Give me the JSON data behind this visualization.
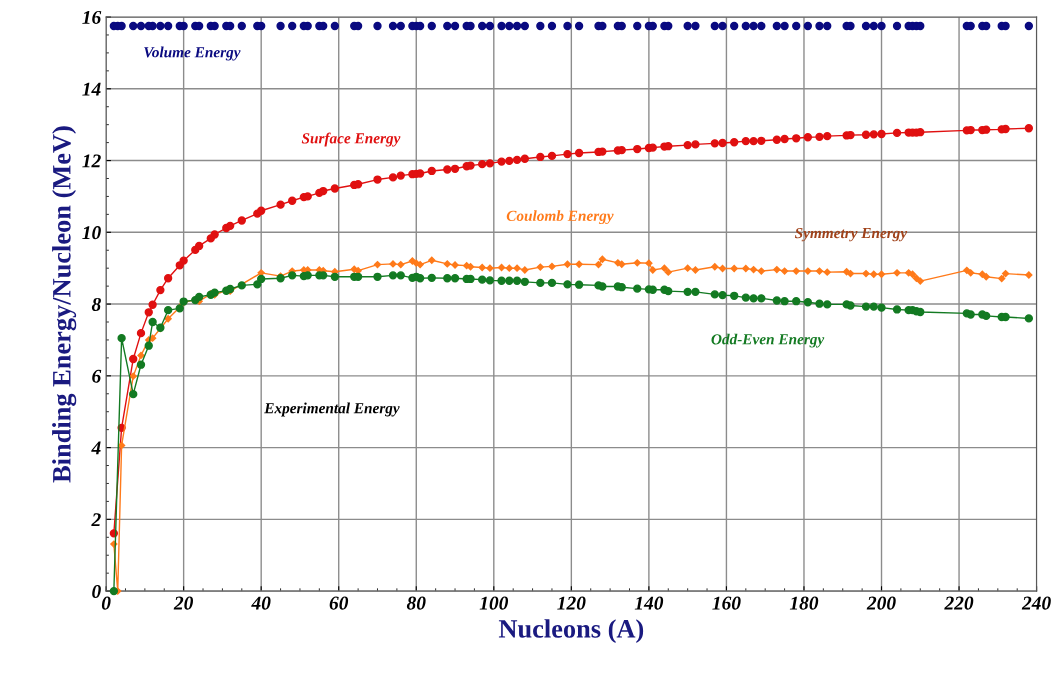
{
  "chart_data": {
    "type": "line",
    "xlabel": "Nucleons (A)",
    "ylabel": "Binding Energy/Nucleon (MeV)",
    "xlim": [
      0,
      240
    ],
    "ylim": [
      0,
      16
    ],
    "xticks": [
      0,
      20,
      40,
      60,
      80,
      100,
      120,
      140,
      160,
      180,
      200,
      220,
      240
    ],
    "yticks": [
      0,
      2,
      4,
      6,
      8,
      10,
      12,
      14,
      16
    ],
    "grid": true,
    "legend": false,
    "annotations": [
      "Symmetry Energy",
      "Experimental Energy"
    ],
    "x": [
      2,
      3,
      4,
      7,
      9,
      11,
      12,
      14,
      16,
      19,
      20,
      23,
      24,
      27,
      28,
      31,
      32,
      35,
      39,
      40,
      45,
      48,
      51,
      52,
      55,
      56,
      59,
      64,
      65,
      70,
      74,
      76,
      79,
      80,
      81,
      84,
      88,
      90,
      93,
      94,
      97,
      99,
      102,
      104,
      106,
      108,
      112,
      115,
      119,
      122,
      127,
      128,
      132,
      133,
      137,
      140,
      141,
      144,
      145,
      150,
      152,
      157,
      159,
      162,
      165,
      167,
      169,
      173,
      175,
      178,
      181,
      184,
      186,
      191,
      192,
      196,
      198,
      200,
      204,
      207,
      208,
      209,
      210,
      222,
      223,
      226,
      227,
      231,
      232,
      238
    ],
    "series": [
      {
        "name": "Volume Energy",
        "type": "scatter",
        "marker": "circle",
        "color": "#0a0a80",
        "values": [
          15.75,
          15.75,
          15.75,
          15.75,
          15.75,
          15.75,
          15.75,
          15.75,
          15.75,
          15.75,
          15.75,
          15.75,
          15.75,
          15.75,
          15.75,
          15.75,
          15.75,
          15.75,
          15.75,
          15.75,
          15.75,
          15.75,
          15.75,
          15.75,
          15.75,
          15.75,
          15.75,
          15.75,
          15.75,
          15.75,
          15.75,
          15.75,
          15.75,
          15.75,
          15.75,
          15.75,
          15.75,
          15.75,
          15.75,
          15.75,
          15.75,
          15.75,
          15.75,
          15.75,
          15.75,
          15.75,
          15.75,
          15.75,
          15.75,
          15.75,
          15.75,
          15.75,
          15.75,
          15.75,
          15.75,
          15.75,
          15.75,
          15.75,
          15.75,
          15.75,
          15.75,
          15.75,
          15.75,
          15.75,
          15.75,
          15.75,
          15.75,
          15.75,
          15.75,
          15.75,
          15.75,
          15.75,
          15.75,
          15.75,
          15.75,
          15.75,
          15.75,
          15.75,
          15.75,
          15.75,
          15.75,
          15.75,
          15.75,
          15.75,
          15.75,
          15.75,
          15.75,
          15.75,
          15.75,
          15.75
        ]
      },
      {
        "name": "Surface Energy",
        "marker": "circle",
        "color": "#e01010",
        "values": [
          1.61,
          null,
          4.55,
          6.47,
          7.19,
          7.77,
          7.98,
          8.39,
          8.72,
          9.08,
          9.21,
          9.51,
          9.62,
          9.83,
          9.94,
          10.12,
          10.18,
          10.33,
          10.52,
          10.6,
          10.77,
          10.88,
          10.98,
          11.0,
          11.1,
          11.15,
          11.22,
          11.32,
          11.34,
          11.47,
          11.53,
          11.58,
          11.62,
          11.63,
          11.64,
          11.71,
          11.75,
          11.77,
          11.84,
          11.86,
          11.9,
          11.92,
          11.97,
          11.99,
          12.02,
          12.05,
          12.1,
          12.13,
          12.18,
          12.21,
          12.24,
          12.25,
          12.28,
          12.29,
          12.32,
          12.35,
          12.36,
          12.39,
          12.4,
          12.43,
          12.45,
          12.48,
          12.49,
          12.51,
          12.54,
          12.54,
          12.55,
          12.58,
          12.6,
          12.62,
          12.65,
          12.66,
          12.68,
          12.7,
          12.71,
          12.72,
          12.73,
          12.74,
          12.77,
          12.78,
          12.78,
          12.78,
          12.79,
          12.84,
          12.85,
          12.85,
          12.86,
          12.87,
          12.88,
          12.9
        ]
      },
      {
        "name": "Coulomb Energy",
        "marker": "diamond",
        "color": "#ff7a1a",
        "values": [
          1.31,
          0,
          4.06,
          5.99,
          6.57,
          7.0,
          7.05,
          7.32,
          7.59,
          7.91,
          8.05,
          8.12,
          8.08,
          8.28,
          8.26,
          8.38,
          8.36,
          null,
          null,
          8.87,
          8.78,
          8.92,
          8.95,
          8.95,
          8.95,
          8.93,
          8.9,
          8.97,
          8.93,
          9.1,
          9.12,
          9.1,
          9.2,
          9.14,
          9.1,
          9.22,
          9.12,
          9.09,
          9.07,
          9.04,
          9.02,
          9.0,
          9.02,
          9.0,
          9.0,
          8.95,
          9.03,
          9.05,
          9.11,
          9.11,
          9.1,
          9.25,
          9.15,
          9.11,
          9.15,
          9.14,
          8.95,
          9.0,
          8.89,
          9.0,
          8.95,
          9.04,
          8.99,
          8.99,
          8.99,
          8.96,
          8.92,
          8.96,
          8.92,
          8.92,
          8.92,
          8.92,
          8.89,
          8.9,
          8.85,
          8.85,
          8.83,
          8.83,
          8.87,
          8.87,
          8.83,
          8.72,
          8.64,
          8.94,
          8.87,
          8.83,
          8.76,
          8.71,
          8.85,
          8.81
        ]
      },
      {
        "name": "Odd-Even Energy",
        "marker": "circle",
        "color": "#137a22",
        "values": [
          0,
          null,
          7.05,
          5.49,
          6.31,
          6.84,
          7.5,
          7.34,
          7.83,
          7.88,
          8.07,
          8.11,
          8.2,
          8.26,
          8.32,
          8.37,
          8.42,
          8.52,
          8.55,
          8.7,
          8.72,
          8.8,
          8.78,
          8.8,
          8.8,
          8.8,
          8.76,
          8.76,
          8.76,
          8.76,
          8.8,
          8.8,
          8.73,
          8.76,
          8.72,
          8.73,
          8.72,
          8.72,
          8.7,
          8.7,
          8.68,
          8.66,
          8.65,
          8.65,
          8.65,
          8.62,
          8.59,
          8.59,
          8.55,
          8.54,
          8.52,
          8.49,
          8.49,
          8.47,
          8.43,
          8.41,
          8.4,
          8.4,
          8.36,
          8.34,
          8.34,
          8.27,
          8.25,
          8.23,
          8.18,
          8.16,
          8.16,
          8.1,
          8.08,
          8.08,
          8.05,
          8.01,
          7.99,
          7.99,
          7.96,
          7.93,
          7.93,
          7.9,
          7.85,
          7.83,
          7.83,
          7.8,
          7.78,
          7.74,
          7.71,
          7.71,
          7.67,
          7.64,
          7.64,
          7.6
        ]
      }
    ]
  }
}
